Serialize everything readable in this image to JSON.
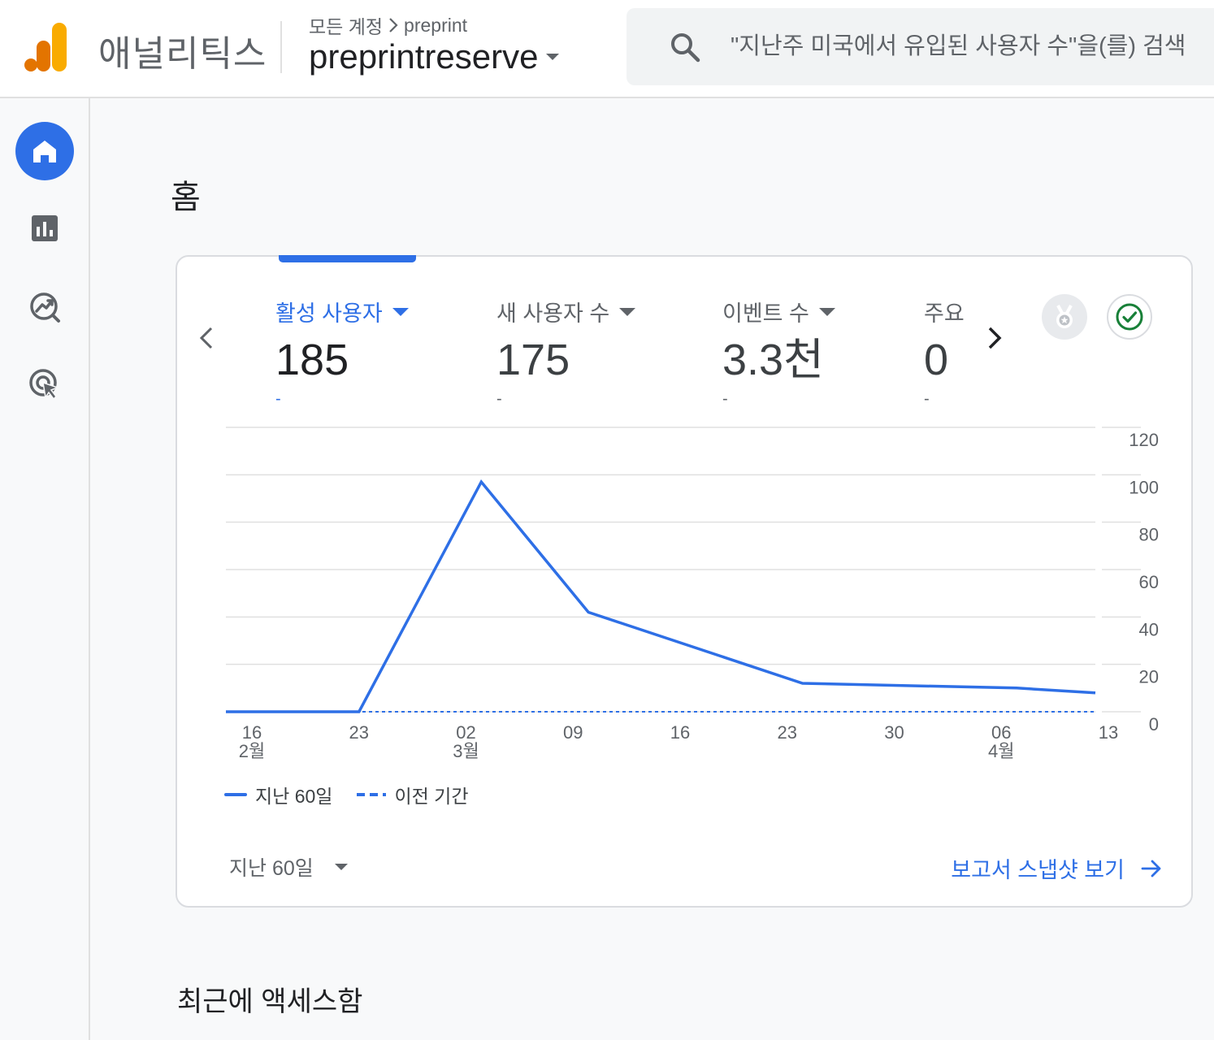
{
  "header": {
    "app_name": "애널리틱스",
    "breadcrumb_root": "모든 계정",
    "breadcrumb_child": "preprint",
    "account_name": "preprintreserve",
    "search_placeholder": "\"지난주 미국에서 유입된 사용자 수\"을(를) 검색"
  },
  "sidebar": {
    "items": [
      {
        "icon": "home-icon",
        "active": true
      },
      {
        "icon": "reports-icon",
        "active": false
      },
      {
        "icon": "explore-icon",
        "active": false
      },
      {
        "icon": "advertising-icon",
        "active": false
      }
    ]
  },
  "page": {
    "title": "홈",
    "recent_title": "최근에 액세스함"
  },
  "card": {
    "metrics": [
      {
        "label": "활성 사용자",
        "value": "185",
        "change": "-",
        "active": true
      },
      {
        "label": "새 사용자 수",
        "value": "175",
        "change": "-",
        "active": false
      },
      {
        "label": "이벤트 수",
        "value": "3.3천",
        "change": "-",
        "active": false
      },
      {
        "label": "주요",
        "value": "0",
        "change": "-",
        "active": false
      }
    ],
    "legend_current": "지난 60일",
    "legend_previous": "이전 기간",
    "range_label": "지난 60일",
    "report_link": "보고서 스냅샷 보기"
  },
  "colors": {
    "accent": "#2e6fe6",
    "logo_dark": "#e37400",
    "logo_light": "#f9ab00",
    "check_green": "#188038"
  },
  "chart_data": {
    "type": "line",
    "x_ticks": [
      {
        "day": "16",
        "month": "2월"
      },
      {
        "day": "23",
        "month": ""
      },
      {
        "day": "02",
        "month": "3월"
      },
      {
        "day": "09",
        "month": ""
      },
      {
        "day": "16",
        "month": ""
      },
      {
        "day": "23",
        "month": ""
      },
      {
        "day": "30",
        "month": ""
      },
      {
        "day": "06",
        "month": "4월"
      },
      {
        "day": "13",
        "month": ""
      }
    ],
    "y_ticks": [
      0,
      20,
      40,
      60,
      80,
      100,
      120
    ],
    "ylim": [
      0,
      120
    ],
    "series": [
      {
        "name": "지난 60일",
        "style": "solid",
        "points": [
          {
            "x": "02-14",
            "y": 0
          },
          {
            "x": "02-23",
            "y": 0
          },
          {
            "x": "03-02",
            "y": 97
          },
          {
            "x": "03-09",
            "y": 42
          },
          {
            "x": "03-23",
            "y": 12
          },
          {
            "x": "04-06",
            "y": 10
          },
          {
            "x": "04-13",
            "y": 8
          }
        ]
      },
      {
        "name": "이전 기간",
        "style": "dashed",
        "points": [
          {
            "x": "02-14",
            "y": 0
          },
          {
            "x": "04-13",
            "y": 0
          }
        ]
      }
    ]
  }
}
